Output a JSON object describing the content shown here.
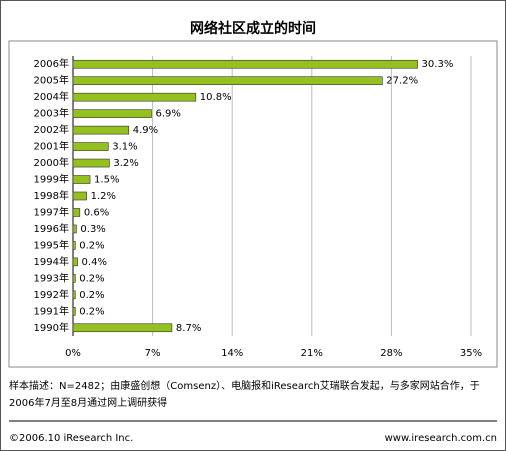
{
  "chart_data": {
    "type": "bar",
    "orientation": "horizontal",
    "title": "网络社区成立的时间",
    "categories": [
      "2006年",
      "2005年",
      "2004年",
      "2003年",
      "2002年",
      "2001年",
      "2000年",
      "1999年",
      "1998年",
      "1997年",
      "1996年",
      "1995年",
      "1994年",
      "1993年",
      "1992年",
      "1991年",
      "1990年"
    ],
    "values": [
      30.3,
      27.2,
      10.8,
      6.9,
      4.9,
      3.1,
      3.2,
      1.5,
      1.2,
      0.6,
      0.3,
      0.2,
      0.4,
      0.2,
      0.2,
      0.2,
      8.7
    ],
    "value_labels": [
      "30.3%",
      "27.2%",
      "10.8%",
      "6.9%",
      "4.9%",
      "3.1%",
      "3.2%",
      "1.5%",
      "1.2%",
      "0.6%",
      "0.3%",
      "0.2%",
      "0.4%",
      "0.2%",
      "0.2%",
      "0.2%",
      "8.7%"
    ],
    "color": "#94c11f",
    "xlim": [
      0,
      35
    ],
    "xticks": [
      {
        "value": 0,
        "label": "0%"
      },
      {
        "value": 7,
        "label": "7%"
      },
      {
        "value": 14,
        "label": "14%"
      },
      {
        "value": 21,
        "label": "21%"
      },
      {
        "value": 28,
        "label": "28%"
      },
      {
        "value": 35,
        "label": "35%"
      }
    ],
    "grid": true,
    "note": "样本描述：N=2482；由康盛创想（Comsenz）、电脑报和iResearch艾瑞联合发起，与多家网站合作，于2006年7月至8月通过网上调研获得",
    "copyright": "©2006.10 iResearch Inc.",
    "website": "www.iresearch.com.cn"
  }
}
